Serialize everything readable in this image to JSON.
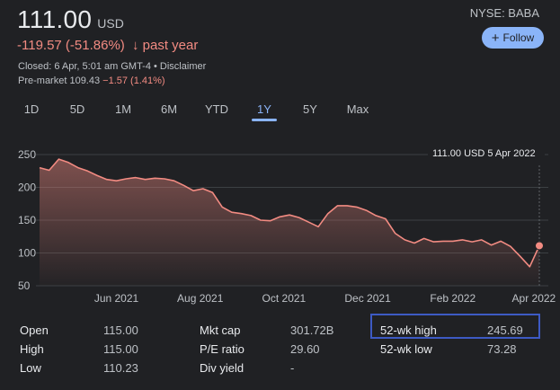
{
  "quote": {
    "price": "111.00",
    "currency": "USD",
    "change_text": "-119.57 (-51.86%)",
    "change_arrow": "↓",
    "change_period": "past year",
    "closed_text": "Closed: 6 Apr, 5:01 am GMT-4 • Disclaimer",
    "premarket_label": "Pre-market 109.43",
    "premarket_change": "−1.57 (1.41%)",
    "exchange": "NYSE: BABA",
    "follow_label": "Follow",
    "follow_icon": "plus-icon"
  },
  "tabs": [
    "1D",
    "5D",
    "1M",
    "6M",
    "YTD",
    "1Y",
    "5Y",
    "Max"
  ],
  "active_tab": "1Y",
  "colors": {
    "background": "#202124",
    "line": "#f28b82",
    "accent": "#8ab4f8",
    "highlight_box": "#3d5ac4"
  },
  "chart_data": {
    "type": "area",
    "tooltip": "111.00 USD  5 Apr 2022",
    "ylim": [
      50,
      250
    ],
    "yticks": [
      250,
      200,
      150,
      100,
      50
    ],
    "xticks": [
      "Jun 2021",
      "Aug 2021",
      "Oct 2021",
      "Dec 2021",
      "Feb 2022",
      "Apr 2022"
    ],
    "grid": true,
    "series": [
      {
        "x": [
          "2021-04-06",
          "2021-04-13",
          "2021-04-20",
          "2021-04-27",
          "2021-05-04",
          "2021-05-11",
          "2021-05-18",
          "2021-05-25",
          "2021-06-01",
          "2021-06-08",
          "2021-06-15",
          "2021-06-22",
          "2021-06-29",
          "2021-07-06",
          "2021-07-13",
          "2021-07-20",
          "2021-07-27",
          "2021-08-03",
          "2021-08-10",
          "2021-08-17",
          "2021-08-24",
          "2021-08-31",
          "2021-09-07",
          "2021-09-14",
          "2021-09-21",
          "2021-09-28",
          "2021-10-05",
          "2021-10-12",
          "2021-10-19",
          "2021-10-26",
          "2021-11-02",
          "2021-11-09",
          "2021-11-16",
          "2021-11-23",
          "2021-11-30",
          "2021-12-07",
          "2021-12-14",
          "2021-12-21",
          "2021-12-28",
          "2022-01-04",
          "2022-01-11",
          "2022-01-18",
          "2022-01-25",
          "2022-02-01",
          "2022-02-08",
          "2022-02-15",
          "2022-02-22",
          "2022-03-01",
          "2022-03-08",
          "2022-03-15",
          "2022-03-22",
          "2022-03-29",
          "2022-04-05"
        ],
        "values": [
          230,
          226,
          243,
          238,
          230,
          225,
          218,
          212,
          210,
          213,
          215,
          212,
          214,
          213,
          210,
          203,
          195,
          198,
          192,
          170,
          162,
          160,
          157,
          150,
          149,
          155,
          158,
          154,
          147,
          140,
          160,
          172,
          172,
          170,
          165,
          157,
          152,
          130,
          120,
          115,
          122,
          117,
          118,
          118,
          120,
          117,
          120,
          112,
          118,
          110,
          95,
          79,
          111
        ]
      }
    ],
    "end_point": {
      "x": "2022-04-05",
      "y": 111.0
    }
  },
  "stats": {
    "col1": [
      {
        "label": "Open",
        "value": "115.00"
      },
      {
        "label": "High",
        "value": "115.00"
      },
      {
        "label": "Low",
        "value": "110.23"
      }
    ],
    "col2": [
      {
        "label": "Mkt cap",
        "value": "301.72B"
      },
      {
        "label": "P/E ratio",
        "value": "29.60"
      },
      {
        "label": "Div yield",
        "value": "-"
      }
    ],
    "col3": [
      {
        "label": "52-wk high",
        "value": "245.69"
      },
      {
        "label": "52-wk low",
        "value": "73.28"
      }
    ]
  }
}
